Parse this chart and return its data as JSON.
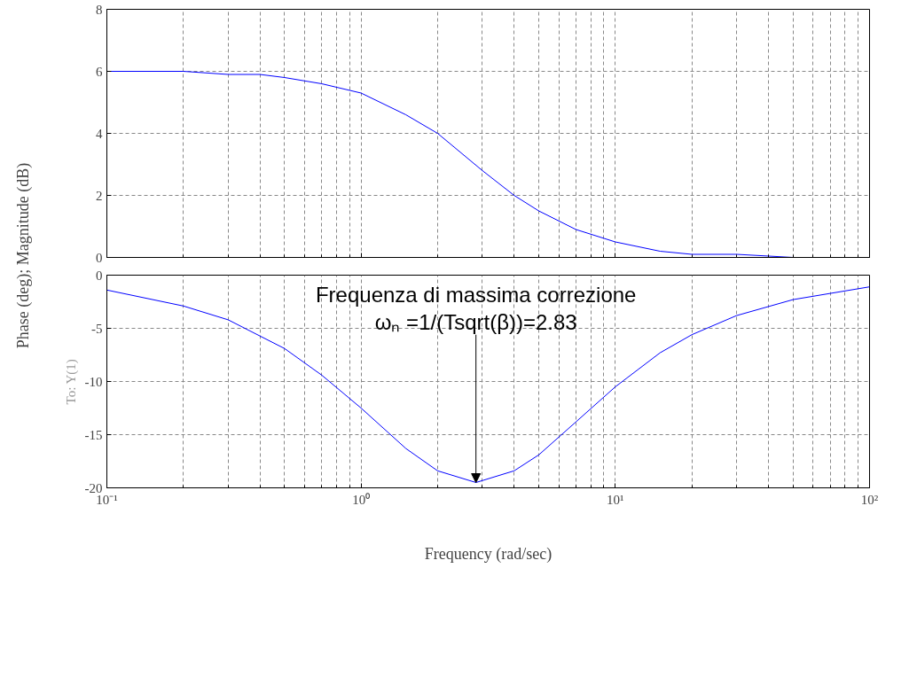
{
  "chart_data": [
    {
      "type": "line",
      "ylabel": "Phase (deg); Magnitude (dB)",
      "log": "x",
      "grid": true,
      "tick_labels": "y",
      "line_style": "solid",
      "marker": "none",
      "x": [
        0.1,
        0.2,
        0.3,
        0.4,
        0.5,
        0.7,
        1,
        1.5,
        2,
        3,
        4,
        5,
        7,
        10,
        15,
        20,
        30,
        50,
        100
      ],
      "series": [
        {
          "color": "#0000ff",
          "values": [
            6.0,
            6.0,
            5.9,
            5.9,
            5.8,
            5.6,
            5.3,
            4.6,
            4.0,
            2.8,
            2.0,
            1.5,
            0.9,
            0.5,
            0.2,
            0.1,
            0.1,
            0.0,
            0.0
          ]
        }
      ],
      "xlim": [
        0.1,
        100
      ],
      "xticks": [
        0.1,
        1,
        10,
        100
      ],
      "ylim": [
        0,
        8
      ],
      "yticks": [
        0,
        2,
        4,
        6,
        8
      ]
    },
    {
      "type": "line",
      "ylabel": "To: Y(1)",
      "xlabel": "Frequency (rad/sec)",
      "log": "x",
      "grid": true,
      "line_style": "solid",
      "marker": "none",
      "x": [
        0.1,
        0.2,
        0.3,
        0.5,
        0.7,
        1,
        1.5,
        2,
        2.83,
        4,
        5,
        7,
        10,
        15,
        20,
        30,
        50,
        100
      ],
      "series": [
        {
          "color": "#0000ff",
          "values": [
            -1.4,
            -2.9,
            -4.2,
            -6.9,
            -9.4,
            -12.5,
            -16.3,
            -18.4,
            -19.5,
            -18.4,
            -16.9,
            -13.8,
            -10.5,
            -7.3,
            -5.6,
            -3.8,
            -2.3,
            -1.1
          ]
        }
      ],
      "annotations": [
        "Frequenza di massima correzione",
        {
          "text": "ωₙ =1/(Tsqrt(β))=2.83",
          "x": 2.83,
          "y": -19.5
        }
      ],
      "xlim": [
        0.1,
        100
      ],
      "xticks": [
        {
          "value": 0.1,
          "label": "10⁻¹"
        },
        {
          "value": 1,
          "label": "10⁰"
        },
        {
          "value": 10,
          "label": "10¹"
        },
        {
          "value": 100,
          "label": "10²"
        }
      ],
      "ylim": [
        -20,
        0
      ],
      "yticks": [
        -20,
        -15,
        -10,
        -5,
        0
      ]
    }
  ]
}
